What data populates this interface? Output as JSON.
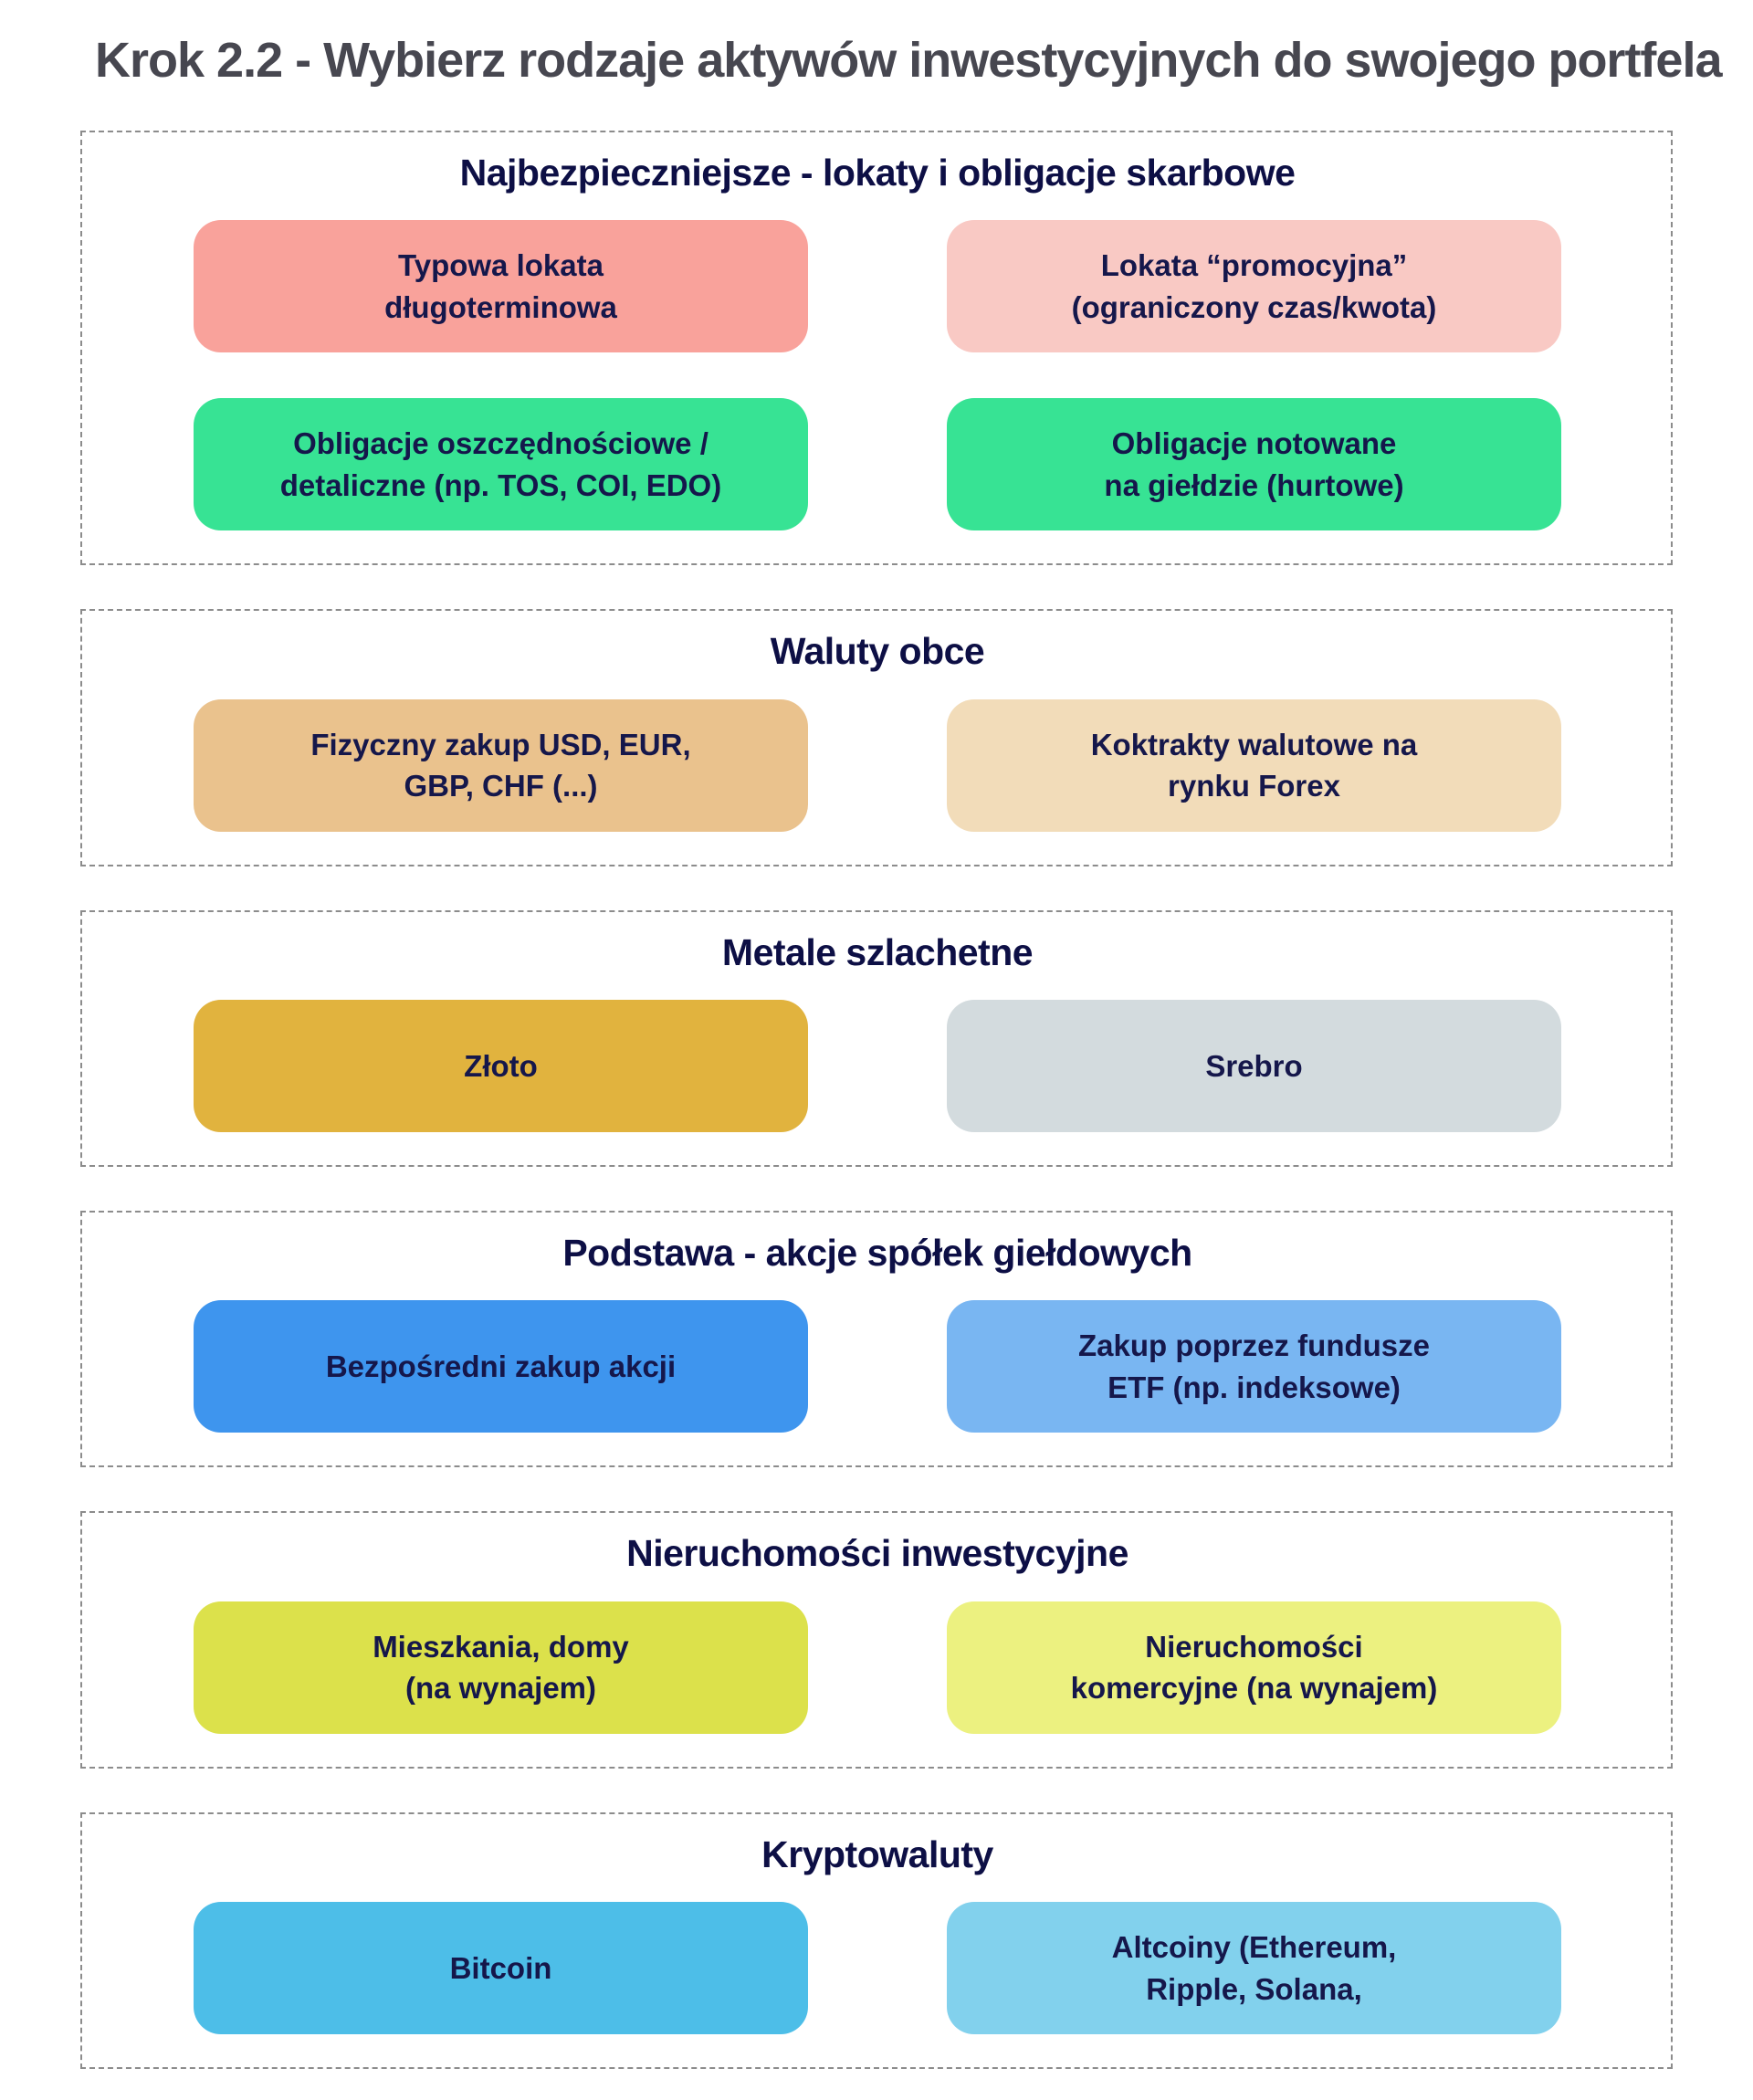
{
  "page_title": "Krok 2.2 - Wybierz rodzaje aktywów inwestycyjnych do swojego portfela",
  "colors": {
    "title_text": "#474750",
    "section_header_text": "#0d0f45",
    "box_text": "#15174b",
    "section_border": "#8c8c8c"
  },
  "sections": [
    {
      "title": "Najbezpieczniejsze - lokaty i obligacje skarbowe",
      "boxes": [
        {
          "label": "Typowa lokata\ndługoterminowa",
          "bg": "#F9A29B"
        },
        {
          "label": "Lokata “promocyjna”\n(ograniczony czas/kwota)",
          "bg": "#F9C9C4"
        },
        {
          "label": "Obligacje oszczędnościowe /\ndetaliczne (np. TOS, COI, EDO)",
          "bg": "#37E394"
        },
        {
          "label": "Obligacje notowane\nna giełdzie (hurtowe)",
          "bg": "#37E394"
        }
      ]
    },
    {
      "title": "Waluty obce",
      "boxes": [
        {
          "label": "Fizyczny zakup USD, EUR,\nGBP, CHF (...)",
          "bg": "#EAC28D"
        },
        {
          "label": "Koktrakty walutowe na\nrynku Forex",
          "bg": "#F2DCB9"
        }
      ]
    },
    {
      "title": "Metale szlachetne",
      "boxes": [
        {
          "label": "Złoto",
          "bg": "#E1B33E"
        },
        {
          "label": "Srebro",
          "bg": "#D3DBDE"
        }
      ]
    },
    {
      "title": "Podstawa - akcje spółek giełdowych",
      "boxes": [
        {
          "label": "Bezpośredni zakup akcji",
          "bg": "#3E95EE"
        },
        {
          "label": "Zakup poprzez fundusze\nETF (np. indeksowe)",
          "bg": "#79B6F2"
        }
      ]
    },
    {
      "title": "Nieruchomości inwestycyjne",
      "boxes": [
        {
          "label": "Mieszkania, domy\n(na wynajem)",
          "bg": "#DCE14B"
        },
        {
          "label": "Nieruchomości\nkomercyjne (na wynajem)",
          "bg": "#ECF180"
        }
      ]
    },
    {
      "title": "Kryptowaluty",
      "boxes": [
        {
          "label": "Bitcoin",
          "bg": "#4DBEE8"
        },
        {
          "label": "Altcoiny (Ethereum,\nRipple, Solana,",
          "bg": "#82D1ED"
        }
      ]
    }
  ]
}
